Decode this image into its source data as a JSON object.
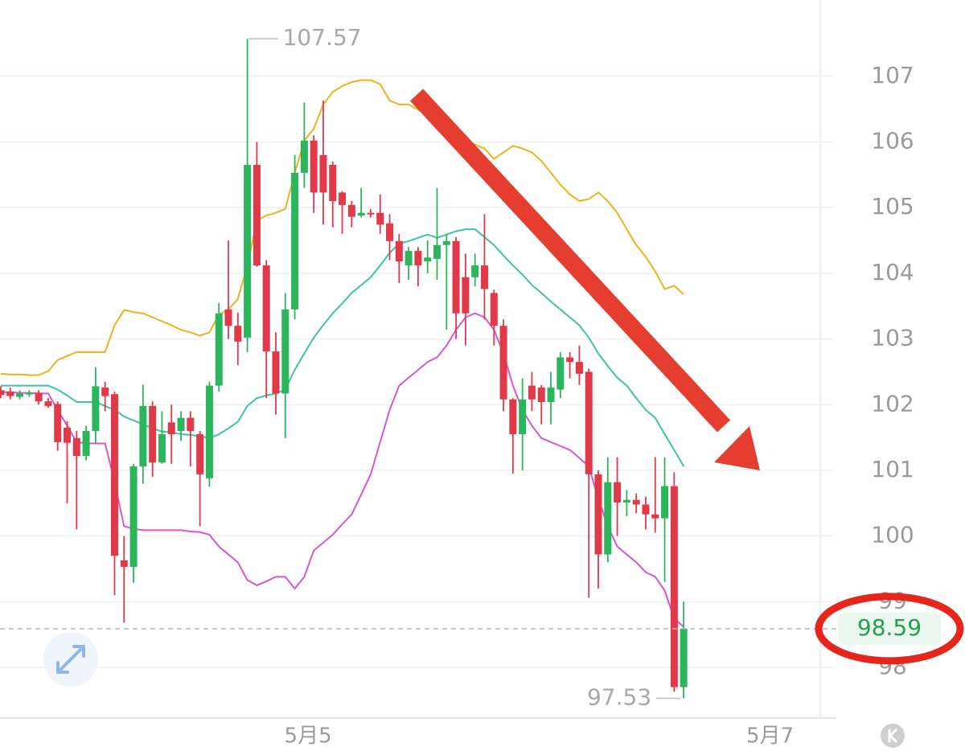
{
  "chart_data": {
    "type": "candlestick",
    "open": [
      102.22,
      102.2,
      102.12,
      102.18,
      102.18,
      102.05,
      102.01,
      101.65,
      101.49,
      101.22,
      101.6,
      102.26,
      102.16,
      99.63,
      99.53,
      101.06,
      101.98,
      101.12,
      101.73,
      101.6,
      101.8,
      101.55,
      100.88,
      102.29,
      103.45,
      103.2,
      103.02,
      105.65,
      104.12,
      102.81,
      102.17,
      103.45,
      105.53,
      106.02,
      105.8,
      105.65,
      105.23,
      105.04,
      104.88,
      104.92,
      104.92,
      104.76,
      104.49,
      104.12,
      104.34,
      104.18,
      104.22,
      104.43,
      104.49,
      103.94,
      103.94,
      104.12,
      103.7,
      103.2,
      102.08,
      101.55,
      102.29,
      102.26,
      102.04,
      102.23,
      102.72,
      102.65,
      102.5,
      100.94,
      99.72,
      100.82,
      100.51,
      100.55,
      100.48,
      100.33,
      100.27,
      100.76,
      97.7
    ],
    "high": [
      102.28,
      102.26,
      102.22,
      102.22,
      102.22,
      102.1,
      102.05,
      101.75,
      101.6,
      101.68,
      102.57,
      102.35,
      102.2,
      100.0,
      101.1,
      102.3,
      102.05,
      101.9,
      102.0,
      101.9,
      101.9,
      101.6,
      102.35,
      103.55,
      104.5,
      103.4,
      107.57,
      106.0,
      104.2,
      103.1,
      103.7,
      105.8,
      106.6,
      106.1,
      106.63,
      105.7,
      105.25,
      105.1,
      105.3,
      104.98,
      105.2,
      104.9,
      104.6,
      104.4,
      104.4,
      104.5,
      105.3,
      104.6,
      104.55,
      104.3,
      104.3,
      104.9,
      103.75,
      103.3,
      102.1,
      102.4,
      102.5,
      102.3,
      102.5,
      102.8,
      102.8,
      102.9,
      102.55,
      101.0,
      101.2,
      101.2,
      100.7,
      100.65,
      100.6,
      101.2,
      101.2,
      100.97,
      99.0
    ],
    "low": [
      102.1,
      102.08,
      102.08,
      102.12,
      102.0,
      101.95,
      101.3,
      100.5,
      100.1,
      101.15,
      101.4,
      101.9,
      99.1,
      98.68,
      99.29,
      100.8,
      100.9,
      101.1,
      101.1,
      101.45,
      101.06,
      100.15,
      100.75,
      102.2,
      103.0,
      102.6,
      102.8,
      104.1,
      102.1,
      101.85,
      101.49,
      103.3,
      105.3,
      104.92,
      104.74,
      104.7,
      104.6,
      104.7,
      104.85,
      104.85,
      104.6,
      104.2,
      103.85,
      103.9,
      103.8,
      104.0,
      103.9,
      103.14,
      103.0,
      102.9,
      103.8,
      103.3,
      102.9,
      101.9,
      100.95,
      101.0,
      101.9,
      101.7,
      101.7,
      102.1,
      102.4,
      102.3,
      99.06,
      99.2,
      99.6,
      100.0,
      100.3,
      100.35,
      100.1,
      100.05,
      99.3,
      97.63,
      97.53
    ],
    "close": [
      102.15,
      102.13,
      102.17,
      102.18,
      102.05,
      101.98,
      101.43,
      101.42,
      101.22,
      101.6,
      102.28,
      102.13,
      99.7,
      99.53,
      101.06,
      101.98,
      101.12,
      101.55,
      101.55,
      101.8,
      101.6,
      100.94,
      102.29,
      103.39,
      103.2,
      102.96,
      105.65,
      104.12,
      102.81,
      102.17,
      103.45,
      105.53,
      106.02,
      105.23,
      105.23,
      105.1,
      105.04,
      104.86,
      104.92,
      104.9,
      104.74,
      104.49,
      104.18,
      104.34,
      104.12,
      104.24,
      104.43,
      104.49,
      103.39,
      103.39,
      104.12,
      103.76,
      103.2,
      102.08,
      101.55,
      102.08,
      102.08,
      102.04,
      102.26,
      102.72,
      102.65,
      102.47,
      100.94,
      99.72,
      100.82,
      100.51,
      100.55,
      100.48,
      100.33,
      100.27,
      100.76,
      97.7,
      98.59
    ],
    "up_color": "#2db55d",
    "down_color": "#e0394a",
    "lines": [
      {
        "color": "#e8b51f",
        "values": [
          102.47,
          102.46,
          102.46,
          102.45,
          102.45,
          102.51,
          102.68,
          102.74,
          102.8,
          102.8,
          102.8,
          102.8,
          103.21,
          103.44,
          103.41,
          103.39,
          103.33,
          103.27,
          103.21,
          103.14,
          103.1,
          103.05,
          103.1,
          103.37,
          103.45,
          103.61,
          104.12,
          104.8,
          104.88,
          104.92,
          104.98,
          105.53,
          106.02,
          106.2,
          106.57,
          106.76,
          106.85,
          106.91,
          106.94,
          106.94,
          106.88,
          106.63,
          106.57,
          106.57,
          106.49,
          106.41,
          106.33,
          106.33,
          106.2,
          106.02,
          105.96,
          105.9,
          105.74,
          105.84,
          105.94,
          105.9,
          105.84,
          105.71,
          105.53,
          105.35,
          105.2,
          105.1,
          105.13,
          105.23,
          105.1,
          104.92,
          104.67,
          104.43,
          104.25,
          104.03,
          103.76,
          103.81,
          103.68
        ]
      },
      {
        "color": "#3cc3a8",
        "values": [
          102.29,
          102.29,
          102.29,
          102.29,
          102.29,
          102.29,
          102.23,
          102.14,
          102.04,
          102.04,
          102.04,
          101.98,
          101.92,
          101.82,
          101.76,
          101.7,
          101.64,
          101.59,
          101.58,
          101.55,
          101.54,
          101.52,
          101.49,
          101.55,
          101.64,
          101.74,
          101.98,
          102.1,
          102.14,
          102.17,
          102.23,
          102.53,
          102.78,
          103.02,
          103.21,
          103.39,
          103.54,
          103.7,
          103.82,
          103.94,
          104.12,
          104.31,
          104.45,
          104.49,
          104.54,
          104.59,
          104.54,
          104.59,
          104.64,
          104.67,
          104.67,
          104.55,
          104.43,
          104.27,
          104.12,
          103.98,
          103.82,
          103.7,
          103.57,
          103.45,
          103.33,
          103.21,
          103.02,
          102.78,
          102.59,
          102.41,
          102.29,
          102.1,
          101.92,
          101.8,
          101.55,
          101.31,
          101.06
        ]
      },
      {
        "color": "#d957c8",
        "values": [
          102.19,
          102.19,
          102.18,
          102.18,
          102.17,
          102.17,
          101.92,
          101.68,
          101.43,
          101.41,
          101.41,
          101.41,
          100.82,
          100.15,
          100.11,
          100.09,
          100.09,
          100.09,
          100.09,
          100.09,
          100.07,
          100.06,
          100.02,
          99.84,
          99.72,
          99.6,
          99.33,
          99.25,
          99.31,
          99.38,
          99.38,
          99.2,
          99.38,
          99.78,
          99.9,
          100.02,
          100.18,
          100.33,
          100.63,
          100.94,
          101.43,
          101.92,
          102.29,
          102.41,
          102.53,
          102.65,
          102.72,
          102.9,
          103.14,
          103.33,
          103.39,
          103.33,
          103.14,
          102.78,
          102.29,
          101.92,
          101.68,
          101.49,
          101.43,
          101.37,
          101.31,
          101.19,
          101.06,
          100.57,
          100.15,
          99.84,
          99.72,
          99.6,
          99.45,
          99.38,
          99.17,
          98.74,
          98.62
        ]
      }
    ],
    "xlim": [
      -0.08,
      86.4
    ],
    "xticks": [
      {
        "value": 32.4,
        "label": "5月5"
      },
      {
        "value": 81.1,
        "label": "5月7"
      }
    ],
    "ylim": [
      97.23,
      108.16
    ],
    "yticks": [
      98,
      99,
      100,
      101,
      102,
      103,
      104,
      105,
      106,
      107
    ],
    "grid": true
  }
}
